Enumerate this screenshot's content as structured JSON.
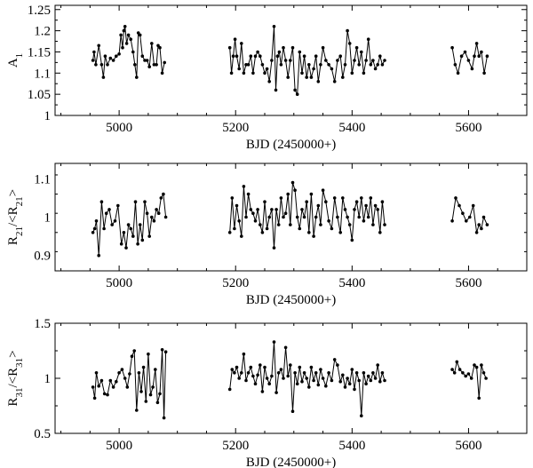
{
  "chart_data": [
    {
      "type": "line",
      "xlabel": "BJD (2450000+)",
      "ylabel": "A_1",
      "xlim": [
        4890,
        5700
      ],
      "ylim": [
        1.0,
        1.26
      ],
      "xticks": [
        5000,
        5200,
        5400,
        5600
      ],
      "yticks": [
        1,
        1.05,
        1.1,
        1.15,
        1.2,
        1.25
      ],
      "ytick_labels": [
        "1",
        "1.05",
        "1.1",
        "1.15",
        "1.2",
        "1.25"
      ],
      "grid": false,
      "series": [
        {
          "x": [
            4955,
            4957,
            4960,
            4965,
            4970,
            4973,
            4976,
            4980,
            4985,
            4990,
            4995,
            5000,
            5003,
            5006,
            5008,
            5010,
            5013,
            5016,
            5020,
            5024,
            5027,
            5030,
            5033,
            5036,
            5040,
            5044,
            5048,
            5052,
            5056,
            5060,
            5064,
            5067,
            5070,
            5074,
            5078
          ],
          "y": [
            1.13,
            1.15,
            1.12,
            1.165,
            1.12,
            1.09,
            1.14,
            1.12,
            1.135,
            1.13,
            1.14,
            1.145,
            1.19,
            1.16,
            1.2,
            1.21,
            1.17,
            1.19,
            1.18,
            1.15,
            1.12,
            1.09,
            1.195,
            1.19,
            1.14,
            1.13,
            1.13,
            1.115,
            1.17,
            1.12,
            1.12,
            1.165,
            1.16,
            1.1,
            1.125
          ]
        },
        {
          "x": [
            5190,
            5193,
            5196,
            5199,
            5202,
            5206,
            5210,
            5214,
            5218,
            5222,
            5226,
            5230,
            5234,
            5238,
            5242,
            5246,
            5250,
            5254,
            5258,
            5262,
            5266,
            5269,
            5272,
            5275,
            5278,
            5282,
            5286,
            5290,
            5294,
            5298,
            5302,
            5306,
            5310,
            5314,
            5318,
            5322,
            5326,
            5330,
            5334,
            5338,
            5342,
            5346,
            5350,
            5355,
            5360,
            5365,
            5370,
            5375,
            5380,
            5384,
            5388,
            5392,
            5396,
            5400,
            5404,
            5408,
            5412,
            5416,
            5420,
            5424,
            5428,
            5432,
            5436,
            5440,
            5444,
            5448,
            5452,
            5456
          ],
          "y": [
            1.16,
            1.1,
            1.14,
            1.18,
            1.14,
            1.11,
            1.17,
            1.1,
            1.12,
            1.12,
            1.14,
            1.1,
            1.14,
            1.15,
            1.14,
            1.12,
            1.1,
            1.11,
            1.08,
            1.13,
            1.21,
            1.06,
            1.14,
            1.15,
            1.12,
            1.16,
            1.13,
            1.09,
            1.13,
            1.16,
            1.06,
            1.05,
            1.15,
            1.1,
            1.14,
            1.09,
            1.12,
            1.09,
            1.11,
            1.14,
            1.08,
            1.12,
            1.16,
            1.13,
            1.12,
            1.11,
            1.08,
            1.13,
            1.14,
            1.09,
            1.12,
            1.2,
            1.17,
            1.1,
            1.13,
            1.16,
            1.12,
            1.15,
            1.1,
            1.13,
            1.18,
            1.12,
            1.13,
            1.11,
            1.12,
            1.14,
            1.12,
            1.13
          ]
        },
        {
          "x": [
            5572,
            5577,
            5582,
            5588,
            5594,
            5600,
            5606,
            5610,
            5614,
            5618,
            5622,
            5627,
            5632
          ],
          "y": [
            1.16,
            1.12,
            1.1,
            1.14,
            1.15,
            1.13,
            1.11,
            1.14,
            1.17,
            1.14,
            1.15,
            1.1,
            1.14
          ]
        }
      ]
    },
    {
      "type": "line",
      "xlabel": "BJD (2450000+)",
      "ylabel": "R_21/<R_21>",
      "xlim": [
        4890,
        5700
      ],
      "ylim": [
        0.86,
        1.14
      ],
      "xticks": [
        5000,
        5200,
        5400,
        5600
      ],
      "yticks": [
        0.9,
        1,
        1.1
      ],
      "ytick_labels": [
        "0.9",
        "1",
        "1.1"
      ],
      "grid": false,
      "series": [
        {
          "x": [
            4955,
            4958,
            4961,
            4965,
            4970,
            4974,
            4978,
            4983,
            4988,
            4993,
            4998,
            5004,
            5008,
            5012,
            5016,
            5020,
            5024,
            5028,
            5032,
            5036,
            5040,
            5044,
            5048,
            5052,
            5056,
            5060,
            5064,
            5068,
            5072,
            5076,
            5080
          ],
          "y": [
            0.96,
            0.97,
            0.99,
            0.9,
            1.04,
            0.97,
            1.01,
            1.02,
            0.98,
            0.99,
            1.03,
            0.93,
            0.96,
            0.92,
            0.98,
            0.97,
            0.95,
            1.04,
            0.93,
            0.98,
            0.94,
            1.04,
            1.01,
            0.95,
            1.0,
            0.99,
            1.02,
            1.01,
            1.05,
            1.06,
            1.0
          ]
        },
        {
          "x": [
            5190,
            5194,
            5198,
            5202,
            5206,
            5210,
            5214,
            5218,
            5222,
            5226,
            5230,
            5234,
            5238,
            5242,
            5246,
            5250,
            5254,
            5258,
            5262,
            5266,
            5270,
            5274,
            5278,
            5282,
            5286,
            5290,
            5294,
            5298,
            5302,
            5306,
            5310,
            5314,
            5318,
            5322,
            5326,
            5330,
            5334,
            5338,
            5342,
            5346,
            5350,
            5355,
            5360,
            5365,
            5370,
            5375,
            5380,
            5384,
            5388,
            5392,
            5396,
            5400,
            5404,
            5408,
            5412,
            5416,
            5420,
            5424,
            5428,
            5432,
            5436,
            5440,
            5444,
            5448,
            5452,
            5456
          ],
          "y": [
            0.96,
            1.05,
            0.97,
            1.03,
            0.99,
            0.95,
            1.08,
            1.0,
            1.06,
            1.02,
            1.01,
            0.99,
            1.02,
            0.98,
            0.96,
            1.04,
            0.97,
            1.0,
            1.02,
            0.92,
            1.02,
            0.98,
            1.05,
            1.0,
            1.01,
            1.06,
            0.98,
            1.09,
            1.07,
            1.0,
            0.97,
            1.02,
            1.0,
            1.04,
            0.96,
            1.06,
            0.95,
            1.0,
            1.03,
            0.98,
            1.07,
            1.04,
            0.99,
            0.97,
            1.05,
            1.0,
            0.96,
            1.05,
            1.02,
            1.0,
            0.98,
            0.94,
            1.02,
            1.04,
            1.0,
            1.05,
            0.99,
            1.03,
            1.0,
            1.05,
            0.98,
            1.03,
            1.02,
            0.96,
            1.04,
            0.98
          ]
        },
        {
          "x": [
            5572,
            5578,
            5584,
            5590,
            5596,
            5602,
            5608,
            5614,
            5618,
            5622,
            5626,
            5632
          ],
          "y": [
            0.99,
            1.05,
            1.03,
            1.01,
            0.99,
            1.0,
            1.03,
            0.96,
            0.98,
            0.97,
            1.0,
            0.98
          ]
        }
      ]
    },
    {
      "type": "line",
      "xlabel": "BJD (2450000+)",
      "ylabel": "R_31/<R_31>",
      "xlim": [
        4890,
        5700
      ],
      "ylim": [
        0.5,
        1.5
      ],
      "xticks": [
        5000,
        5200,
        5400,
        5600
      ],
      "yticks": [
        0.5,
        1,
        1.5
      ],
      "ytick_labels": [
        "0.5",
        "1",
        "1.5"
      ],
      "grid": false,
      "series": [
        {
          "x": [
            4955,
            4958,
            4961,
            4965,
            4970,
            4975,
            4980,
            4985,
            4990,
            4995,
            5000,
            5005,
            5010,
            5014,
            5018,
            5022,
            5026,
            5030,
            5034,
            5038,
            5042,
            5046,
            5050,
            5054,
            5058,
            5062,
            5066,
            5070,
            5074,
            5077,
            5080
          ],
          "y": [
            0.92,
            0.82,
            1.05,
            0.93,
            0.98,
            0.86,
            0.85,
            0.98,
            0.92,
            0.97,
            1.05,
            1.08,
            1.0,
            0.92,
            1.04,
            1.2,
            1.25,
            0.71,
            1.05,
            0.88,
            1.1,
            0.79,
            1.22,
            0.85,
            0.92,
            1.08,
            0.78,
            0.86,
            1.26,
            0.64,
            1.24
          ]
        },
        {
          "x": [
            5190,
            5194,
            5198,
            5202,
            5206,
            5210,
            5214,
            5218,
            5222,
            5226,
            5230,
            5234,
            5238,
            5242,
            5246,
            5250,
            5254,
            5258,
            5262,
            5266,
            5270,
            5274,
            5278,
            5282,
            5286,
            5290,
            5294,
            5298,
            5302,
            5306,
            5310,
            5314,
            5318,
            5322,
            5326,
            5330,
            5334,
            5338,
            5342,
            5346,
            5350,
            5355,
            5360,
            5365,
            5370,
            5375,
            5380,
            5384,
            5388,
            5392,
            5396,
            5400,
            5404,
            5408,
            5412,
            5416,
            5420,
            5424,
            5428,
            5432,
            5436,
            5440,
            5444,
            5448,
            5452,
            5456
          ],
          "y": [
            0.9,
            1.08,
            1.05,
            1.1,
            1.0,
            1.05,
            1.22,
            0.98,
            1.05,
            1.1,
            1.02,
            0.95,
            1.03,
            1.12,
            0.88,
            1.1,
            1.0,
            0.95,
            1.02,
            1.33,
            0.87,
            1.05,
            1.08,
            1.0,
            1.28,
            1.02,
            1.12,
            0.7,
            1.05,
            0.95,
            1.1,
            0.97,
            1.05,
            1.0,
            0.92,
            1.1,
            0.98,
            1.05,
            0.94,
            1.08,
            1.0,
            0.93,
            1.05,
            0.98,
            1.17,
            1.12,
            0.97,
            1.03,
            0.92,
            1.0,
            0.95,
            1.08,
            0.9,
            1.05,
            0.98,
            0.66,
            1.05,
            0.95,
            1.02,
            0.98,
            1.05,
            1.0,
            1.12,
            0.97,
            1.05,
            0.98
          ]
        },
        {
          "x": [
            5572,
            5576,
            5580,
            5585,
            5590,
            5595,
            5600,
            5605,
            5610,
            5614,
            5618,
            5622,
            5626,
            5630
          ],
          "y": [
            1.08,
            1.05,
            1.15,
            1.08,
            1.05,
            1.02,
            1.04,
            1.0,
            1.12,
            1.1,
            0.82,
            1.12,
            1.05,
            1.0
          ]
        }
      ]
    }
  ]
}
